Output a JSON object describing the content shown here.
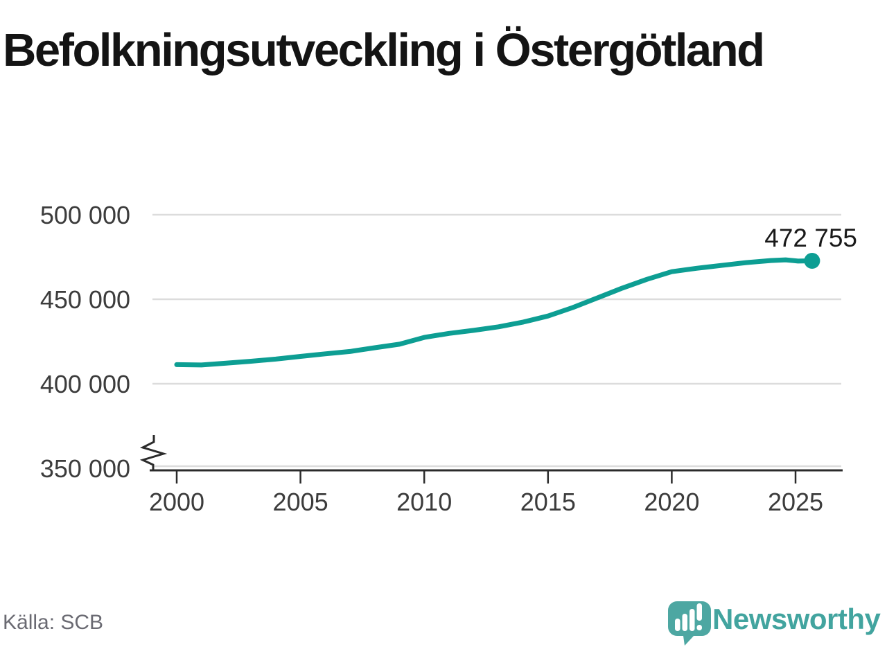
{
  "title": "Befolkningsutveckling i Östergötland",
  "source": "Källa: SCB",
  "annotation": {
    "latest_value_label": "472 755"
  },
  "branding": {
    "name": "Newsworthy",
    "logo_icon": "newsworthy-speech-bubble-bar-chart-icon"
  },
  "colors": {
    "line": "#0D9E93",
    "grid": "#DCDCDC",
    "axis": "#2B2B2B",
    "text_dark": "#3C3C3C",
    "muted": "#6A6A72",
    "logo": "#4DA7A2",
    "logo_text": "#42A49F"
  },
  "chart_data": {
    "type": "line",
    "title": "Befolkningsutveckling i Östergötland",
    "xlabel": "",
    "ylabel": "",
    "x_ticks": [
      2000,
      2005,
      2010,
      2015,
      2020,
      2025
    ],
    "x_tick_labels": [
      "2000",
      "2005",
      "2010",
      "2015",
      "2020",
      "2025"
    ],
    "y_ticks": [
      350000,
      400000,
      450000,
      500000
    ],
    "y_tick_labels": [
      "350 000",
      "400 000",
      "450 000",
      "500 000"
    ],
    "xlim": [
      1999.0,
      2026.9
    ],
    "ylim": [
      350000,
      505000
    ],
    "y_axis_break": true,
    "grid": true,
    "legend": false,
    "series": [
      {
        "name": "Östergötland",
        "x": [
          2000,
          2001,
          2002,
          2003,
          2004,
          2005,
          2006,
          2007,
          2008,
          2009,
          2010,
          2011,
          2012,
          2013,
          2014,
          2015,
          2016,
          2017,
          2018,
          2019,
          2020,
          2021,
          2022,
          2023,
          2024,
          2024.6,
          2025.1,
          2025.67
        ],
        "y": [
          411300,
          411100,
          412200,
          413300,
          414600,
          416200,
          417700,
          419100,
          421300,
          423400,
          427400,
          429800,
          431600,
          433700,
          436500,
          440100,
          445100,
          450800,
          456600,
          461800,
          466300,
          468300,
          470000,
          471700,
          472900,
          473300,
          472600,
          472755
        ]
      }
    ],
    "latest_point": {
      "x": 2025.67,
      "y": 472755,
      "label": "472 755"
    }
  }
}
